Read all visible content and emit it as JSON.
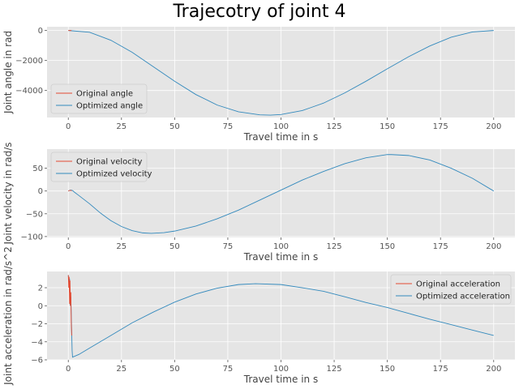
{
  "figure": {
    "title": "Trajecotry of joint 4",
    "colors": {
      "panel_bg": "#e5e5e5",
      "grid": "#ffffff",
      "original": "#e24a33",
      "optimized": "#348abd",
      "tick_text": "#555555",
      "label_text": "#444444"
    }
  },
  "chart_data": [
    {
      "type": "line",
      "xlabel": "Travel time in s",
      "ylabel": "Joint angle in rad",
      "xlim": [
        -10,
        210
      ],
      "ylim": [
        -5800,
        250
      ],
      "xticks": [
        0,
        25,
        50,
        75,
        100,
        125,
        150,
        175,
        200
      ],
      "yticks": [
        -4000,
        -2000,
        0
      ],
      "ytick_labels": [
        "−4000",
        "−2000",
        "0"
      ],
      "grid": true,
      "legend_position": "lower-left",
      "series": [
        {
          "name": "Original angle",
          "color": "#e24a33",
          "x": [
            0,
            0.5,
            1.0,
            1.5
          ],
          "y": [
            0,
            0,
            -0.2,
            -0.6
          ]
        },
        {
          "name": "Optimized angle",
          "color": "#348abd",
          "x": [
            0,
            10,
            20,
            30,
            40,
            50,
            60,
            70,
            80,
            90,
            95,
            100,
            110,
            120,
            130,
            140,
            150,
            160,
            170,
            180,
            190,
            200
          ],
          "y": [
            0,
            -120,
            -650,
            -1450,
            -2420,
            -3380,
            -4270,
            -4970,
            -5420,
            -5620,
            -5640,
            -5600,
            -5340,
            -4840,
            -4160,
            -3380,
            -2550,
            -1750,
            -1030,
            -450,
            -100,
            0
          ]
        }
      ]
    },
    {
      "type": "line",
      "xlabel": "Travel time in s",
      "ylabel": "Joint velocity in rad/s",
      "xlim": [
        -10,
        210
      ],
      "ylim": [
        -102,
        92
      ],
      "xticks": [
        0,
        25,
        50,
        75,
        100,
        125,
        150,
        175,
        200
      ],
      "yticks": [
        -100,
        -50,
        0,
        50
      ],
      "ytick_labels": [
        "−100",
        "−50",
        "0",
        "50"
      ],
      "grid": true,
      "legend_position": "upper-left",
      "series": [
        {
          "name": "Original velocity",
          "color": "#e24a33",
          "x": [
            0,
            0.4,
            0.8,
            1.2,
            1.6
          ],
          "y": [
            0,
            0.8,
            1.5,
            1.2,
            0.5
          ]
        },
        {
          "name": "Optimized velocity",
          "color": "#348abd",
          "x": [
            0,
            0.5,
            1.0,
            1.5,
            2.0,
            3,
            5,
            10,
            15,
            20,
            25,
            30,
            35,
            39,
            45,
            50,
            60,
            70,
            80,
            90,
            100,
            110,
            120,
            130,
            140,
            150,
            152,
            160,
            170,
            180,
            190,
            200
          ],
          "y": [
            0,
            1.2,
            2.0,
            1.8,
            1.0,
            -3,
            -10,
            -28,
            -48,
            -65,
            -78,
            -87,
            -92,
            -93,
            -91.5,
            -88,
            -77,
            -61,
            -42,
            -20,
            2,
            24,
            43,
            60,
            73,
            80,
            80,
            78,
            68,
            50,
            28,
            0
          ]
        }
      ]
    },
    {
      "type": "line",
      "xlabel": "Travel time in s",
      "ylabel": "Joint acceleration in rad/s^2",
      "xlim": [
        -10,
        210
      ],
      "ylim": [
        -6,
        3.8
      ],
      "xticks": [
        0,
        25,
        50,
        75,
        100,
        125,
        150,
        175,
        200
      ],
      "yticks": [
        -6,
        -4,
        -2,
        0,
        2
      ],
      "ytick_labels": [
        "−6",
        "−4",
        "−2",
        "0",
        "2"
      ],
      "grid": true,
      "legend_position": "upper-right",
      "series": [
        {
          "name": "Original acceleration",
          "color": "#e24a33",
          "x": [
            0,
            0.2,
            0.4,
            0.6,
            0.8,
            1.0,
            1.2,
            1.4,
            1.6
          ],
          "y": [
            3.4,
            2.0,
            3.2,
            0.2,
            2.8,
            0.0,
            1.5,
            -2.0,
            -3.3
          ]
        },
        {
          "name": "Optimized acceleration",
          "color": "#348abd",
          "x": [
            0,
            0.3,
            0.6,
            0.9,
            1.2,
            1.5,
            1.8,
            2.0,
            5,
            10,
            20,
            30,
            40,
            50,
            60,
            70,
            80,
            88,
            100,
            110,
            120,
            130,
            140,
            150,
            160,
            170,
            180,
            190,
            200
          ],
          "y": [
            3.4,
            2.5,
            3.0,
            0.0,
            1.0,
            -2.0,
            -5.0,
            -5.7,
            -5.4,
            -4.7,
            -3.3,
            -1.9,
            -0.7,
            0.4,
            1.3,
            1.95,
            2.35,
            2.45,
            2.35,
            2.0,
            1.6,
            1.0,
            0.35,
            -0.2,
            -0.85,
            -1.5,
            -2.1,
            -2.7,
            -3.3
          ]
        }
      ]
    }
  ]
}
